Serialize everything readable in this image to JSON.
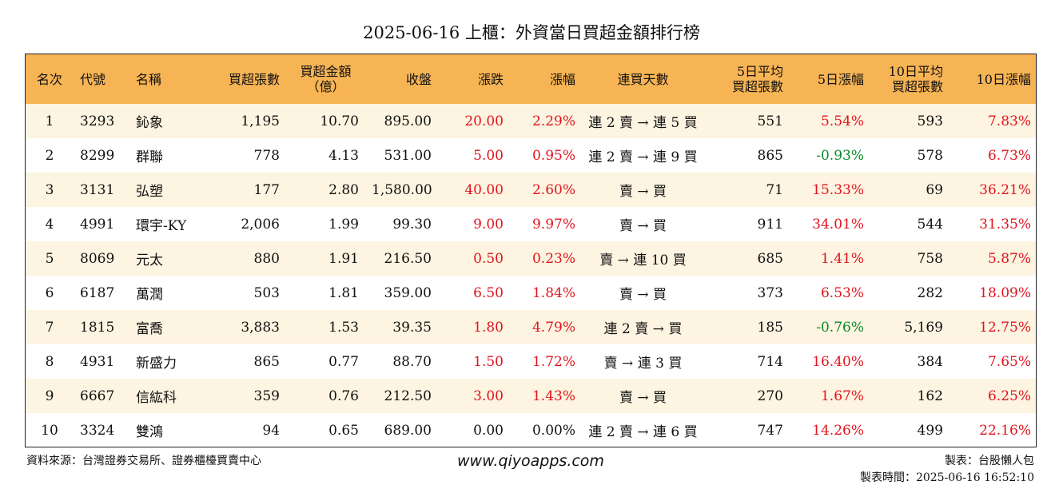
{
  "title": "2025-06-16 上櫃：外資當日買超金額排行榜",
  "headers": {
    "rank": "名次",
    "code": "代號",
    "name": "名稱",
    "buy_lots": "買超張數",
    "buy_amount_1": "買超金額",
    "buy_amount_2": "（億）",
    "close": "收盤",
    "change": "漲跌",
    "pct": "漲幅",
    "days": "連買天數",
    "avg5_1": "5日平均",
    "avg5_2": "買超張數",
    "pct5": "5日漲幅",
    "avg10_1": "10日平均",
    "avg10_2": "買超張數",
    "pct10": "10日漲幅"
  },
  "rows": [
    {
      "rank": "1",
      "code": "3293",
      "name": "鈊象",
      "buy_lots": "1,195",
      "buy_amount": "10.70",
      "close": "895.00",
      "change": "20.00",
      "pct": "2.29%",
      "days": "連 2 賣 → 連 5 買",
      "avg5": "551",
      "pct5": "5.54%",
      "avg10": "593",
      "pct10": "7.83%"
    },
    {
      "rank": "2",
      "code": "8299",
      "name": "群聯",
      "buy_lots": "778",
      "buy_amount": "4.13",
      "close": "531.00",
      "change": "5.00",
      "pct": "0.95%",
      "days": "連 2 賣 → 連 9 買",
      "avg5": "865",
      "pct5": "-0.93%",
      "avg10": "578",
      "pct10": "6.73%"
    },
    {
      "rank": "3",
      "code": "3131",
      "name": "弘塑",
      "buy_lots": "177",
      "buy_amount": "2.80",
      "close": "1,580.00",
      "change": "40.00",
      "pct": "2.60%",
      "days": "賣 → 買",
      "avg5": "71",
      "pct5": "15.33%",
      "avg10": "69",
      "pct10": "36.21%"
    },
    {
      "rank": "4",
      "code": "4991",
      "name": "環宇-KY",
      "buy_lots": "2,006",
      "buy_amount": "1.99",
      "close": "99.30",
      "change": "9.00",
      "pct": "9.97%",
      "days": "賣 → 買",
      "avg5": "911",
      "pct5": "34.01%",
      "avg10": "544",
      "pct10": "31.35%"
    },
    {
      "rank": "5",
      "code": "8069",
      "name": "元太",
      "buy_lots": "880",
      "buy_amount": "1.91",
      "close": "216.50",
      "change": "0.50",
      "pct": "0.23%",
      "days": "賣 → 連 10 買",
      "avg5": "685",
      "pct5": "1.41%",
      "avg10": "758",
      "pct10": "5.87%"
    },
    {
      "rank": "6",
      "code": "6187",
      "name": "萬潤",
      "buy_lots": "503",
      "buy_amount": "1.81",
      "close": "359.00",
      "change": "6.50",
      "pct": "1.84%",
      "days": "賣 → 買",
      "avg5": "373",
      "pct5": "6.53%",
      "avg10": "282",
      "pct10": "18.09%"
    },
    {
      "rank": "7",
      "code": "1815",
      "name": "富喬",
      "buy_lots": "3,883",
      "buy_amount": "1.53",
      "close": "39.35",
      "change": "1.80",
      "pct": "4.79%",
      "days": "連 2 賣 → 買",
      "avg5": "185",
      "pct5": "-0.76%",
      "avg10": "5,169",
      "pct10": "12.75%"
    },
    {
      "rank": "8",
      "code": "4931",
      "name": "新盛力",
      "buy_lots": "865",
      "buy_amount": "0.77",
      "close": "88.70",
      "change": "1.50",
      "pct": "1.72%",
      "days": "賣 → 連 3 買",
      "avg5": "714",
      "pct5": "16.40%",
      "avg10": "384",
      "pct10": "7.65%"
    },
    {
      "rank": "9",
      "code": "6667",
      "name": "信紘科",
      "buy_lots": "359",
      "buy_amount": "0.76",
      "close": "212.50",
      "change": "3.00",
      "pct": "1.43%",
      "days": "賣 → 買",
      "avg5": "270",
      "pct5": "1.67%",
      "avg10": "162",
      "pct10": "6.25%"
    },
    {
      "rank": "10",
      "code": "3324",
      "name": "雙鴻",
      "buy_lots": "94",
      "buy_amount": "0.65",
      "close": "689.00",
      "change": "0.00",
      "pct": "0.00%",
      "days": "連 2 賣 → 連 6 買",
      "avg5": "747",
      "pct5": "14.26%",
      "avg10": "499",
      "pct10": "22.16%"
    }
  ],
  "colors": {
    "up": "#e0141e",
    "down": "#0c8a2a",
    "flat": "#111111",
    "header_bg": "#f7b454",
    "row_alt_bg": "#fdf4e1"
  },
  "footer": {
    "source": "資料來源：台灣證券交易所、證券櫃檯買賣中心",
    "website": "www.qiyoapps.com",
    "maker": "製表：台股懶人包",
    "made_time": "製表時間：2025-06-16 16:52:10"
  }
}
